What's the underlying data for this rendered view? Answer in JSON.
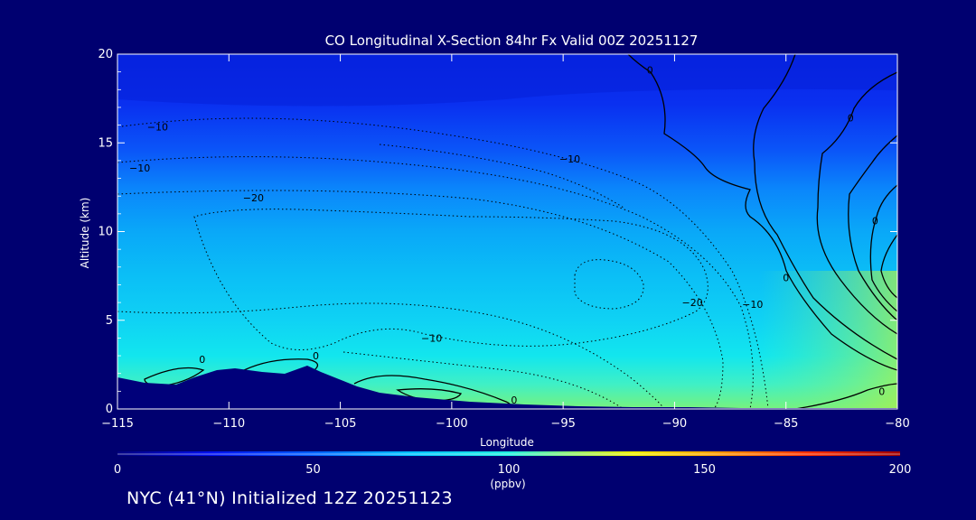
{
  "chart_data": {
    "type": "contour",
    "title": "CO Longitudinal X-Section 84hr  Fx Valid 00Z 20251127",
    "xlabel": "Longitude",
    "ylabel": "Altitude (km)",
    "xlim": [
      -115,
      -80
    ],
    "ylim": [
      0,
      20
    ],
    "x_ticks": [
      -115,
      -110,
      -105,
      -100,
      -95,
      -90,
      -85,
      -80
    ],
    "y_ticks": [
      0,
      5,
      10,
      15,
      20
    ],
    "x_tick_labels": [
      "−115",
      "−110",
      "−105",
      "−100",
      "−95",
      "−90",
      "−85",
      "−80"
    ],
    "y_tick_labels": [
      "0",
      "5",
      "10",
      "15",
      "20"
    ],
    "colorbar": {
      "min": 0,
      "max": 200,
      "ticks": [
        0,
        50,
        100,
        150,
        200
      ],
      "tick_labels": [
        "0",
        "50",
        "100",
        "150",
        "200"
      ],
      "unit_label": "(ppbv)"
    },
    "filled_field_ppbv": [
      {
        "altitude_km": 19,
        "value": 12
      },
      {
        "altitude_km": 16,
        "value": 20
      },
      {
        "altitude_km": 14,
        "value": 30
      },
      {
        "altitude_km": 12,
        "value": 45
      },
      {
        "altitude_km": 10,
        "value": 55
      },
      {
        "altitude_km": 7,
        "value": 62
      },
      {
        "altitude_km": 5,
        "value": 70
      },
      {
        "altitude_km": 3,
        "value": 80
      },
      {
        "altitude_km": 1,
        "value": 95
      }
    ],
    "contour_labels": [
      {
        "text": "0",
        "lon": -91.1,
        "alt": 19.1
      },
      {
        "text": "0",
        "lon": -82.1,
        "alt": 16.4
      },
      {
        "text": "0",
        "lon": -85.0,
        "alt": 7.4
      },
      {
        "text": "0",
        "lon": -81.0,
        "alt": 10.6
      },
      {
        "text": "0",
        "lon": -80.7,
        "alt": 1.0
      },
      {
        "text": "−10",
        "lon": -113.2,
        "alt": 15.9
      },
      {
        "text": "−10",
        "lon": -114.0,
        "alt": 13.6
      },
      {
        "text": "−10",
        "lon": -94.7,
        "alt": 14.1
      },
      {
        "text": "−20",
        "lon": -108.9,
        "alt": 11.9
      },
      {
        "text": "−20",
        "lon": -89.2,
        "alt": 6.0
      },
      {
        "text": "−10",
        "lon": -86.5,
        "alt": 5.9
      },
      {
        "text": "−10",
        "lon": -100.9,
        "alt": 4.0
      },
      {
        "text": "0",
        "lon": -111.2,
        "alt": 2.8
      },
      {
        "text": "0",
        "lon": -106.1,
        "alt": 3.0
      },
      {
        "text": "0",
        "lon": -97.2,
        "alt": 0.5
      }
    ]
  },
  "footer": {
    "caption": "NYC (41°N) Initialized 12Z 20251123"
  },
  "colors": {
    "background": "#000070",
    "terrain": "#00007a",
    "contour": "#000000"
  }
}
